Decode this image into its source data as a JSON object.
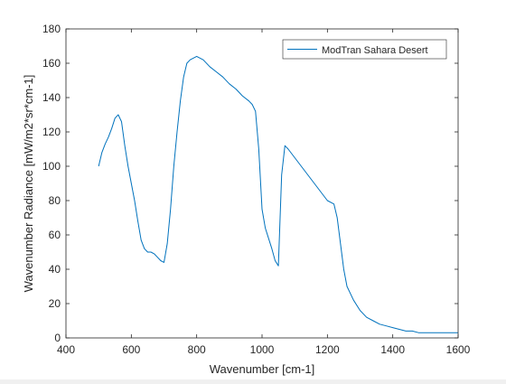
{
  "chart_data": {
    "type": "line",
    "title": "",
    "xlabel": "Wavenumber [cm-1]",
    "ylabel": "Wavenumber Radiance [mW/m2*sr*cm-1]",
    "xlim": [
      400,
      1600
    ],
    "ylim": [
      0,
      180
    ],
    "xticks": [
      400,
      600,
      800,
      1000,
      1200,
      1400,
      1600
    ],
    "yticks": [
      0,
      20,
      40,
      60,
      80,
      100,
      120,
      140,
      160,
      180
    ],
    "grid": false,
    "legend_position": "top-right",
    "series": [
      {
        "name": "ModTran Sahara Desert",
        "color": "#0072BD",
        "x": [
          500,
          510,
          520,
          530,
          540,
          550,
          560,
          570,
          580,
          590,
          600,
          610,
          620,
          630,
          640,
          650,
          660,
          670,
          680,
          690,
          700,
          710,
          720,
          730,
          740,
          750,
          760,
          770,
          780,
          790,
          800,
          820,
          840,
          860,
          880,
          900,
          920,
          940,
          960,
          970,
          980,
          990,
          1000,
          1010,
          1020,
          1030,
          1040,
          1050,
          1060,
          1070,
          1080,
          1100,
          1120,
          1140,
          1160,
          1180,
          1200,
          1220,
          1230,
          1240,
          1250,
          1260,
          1280,
          1300,
          1320,
          1340,
          1360,
          1380,
          1400,
          1420,
          1440,
          1460,
          1480,
          1500,
          1520,
          1540,
          1560,
          1580,
          1600
        ],
        "y": [
          100,
          108,
          113,
          117,
          122,
          128,
          130,
          126,
          112,
          100,
          90,
          80,
          68,
          57,
          52,
          50,
          50,
          49,
          47,
          45,
          44,
          55,
          75,
          100,
          120,
          138,
          152,
          160,
          162,
          163,
          164,
          162,
          158,
          155,
          152,
          148,
          145,
          141,
          138,
          136,
          132,
          110,
          75,
          64,
          58,
          52,
          45,
          42,
          95,
          112,
          110,
          105,
          100,
          95,
          90,
          85,
          80,
          78,
          70,
          55,
          40,
          30,
          22,
          16,
          12,
          10,
          8,
          7,
          6,
          5,
          4,
          4,
          3,
          3,
          3,
          3,
          3,
          3,
          3
        ]
      }
    ]
  }
}
